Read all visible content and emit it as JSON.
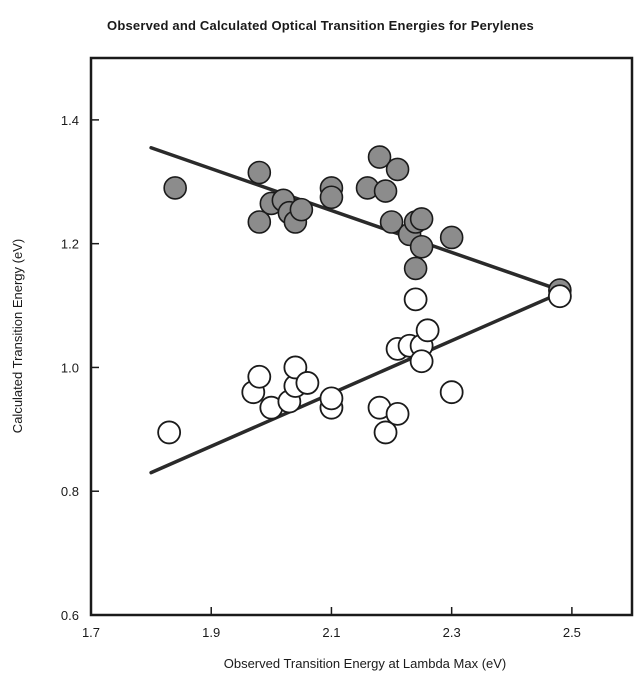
{
  "chart_data": {
    "type": "scatter",
    "title": "Observed and Calculated Optical Transition Energies  for Perylenes",
    "xlabel": "Observed Transition Energy at Lambda Max (eV)",
    "ylabel": "Calculated Transition Energy  (eV)",
    "xlim": [
      1.7,
      2.6
    ],
    "ylim": [
      0.6,
      1.5
    ],
    "xticks": [
      1.7,
      1.9,
      2.1,
      2.3,
      2.5
    ],
    "xtick_labels": [
      "1.7",
      "1.9",
      "2.1",
      "2.3",
      "2.5"
    ],
    "yticks": [
      0.6,
      0.8,
      1.0,
      1.2,
      1.4
    ],
    "ytick_labels": [
      "0.6",
      "0.8",
      "1.0",
      "1.2",
      "1.4"
    ],
    "grid": false,
    "series": [
      {
        "marker": "filled-circle",
        "color": "#8c8c8c",
        "points": [
          [
            1.84,
            1.29
          ],
          [
            1.98,
            1.315
          ],
          [
            1.98,
            1.235
          ],
          [
            2.0,
            1.265
          ],
          [
            2.02,
            1.27
          ],
          [
            2.03,
            1.25
          ],
          [
            2.04,
            1.235
          ],
          [
            2.05,
            1.255
          ],
          [
            2.1,
            1.29
          ],
          [
            2.1,
            1.275
          ],
          [
            2.16,
            1.29
          ],
          [
            2.18,
            1.34
          ],
          [
            2.19,
            1.285
          ],
          [
            2.2,
            1.235
          ],
          [
            2.21,
            1.32
          ],
          [
            2.23,
            1.215
          ],
          [
            2.24,
            1.235
          ],
          [
            2.25,
            1.24
          ],
          [
            2.25,
            1.195
          ],
          [
            2.24,
            1.16
          ],
          [
            2.3,
            1.21
          ],
          [
            2.48,
            1.125
          ]
        ]
      },
      {
        "marker": "open-circle",
        "color": "#ffffff",
        "points": [
          [
            1.83,
            0.895
          ],
          [
            1.97,
            0.96
          ],
          [
            1.98,
            0.985
          ],
          [
            2.0,
            0.935
          ],
          [
            2.03,
            0.945
          ],
          [
            2.04,
            0.97
          ],
          [
            2.04,
            1.0
          ],
          [
            2.06,
            0.975
          ],
          [
            2.1,
            0.935
          ],
          [
            2.1,
            0.95
          ],
          [
            2.18,
            0.935
          ],
          [
            2.19,
            0.895
          ],
          [
            2.21,
            0.925
          ],
          [
            2.21,
            1.03
          ],
          [
            2.23,
            1.035
          ],
          [
            2.24,
            1.11
          ],
          [
            2.25,
            1.035
          ],
          [
            2.25,
            1.01
          ],
          [
            2.26,
            1.06
          ],
          [
            2.3,
            0.96
          ],
          [
            2.48,
            1.115
          ]
        ]
      }
    ],
    "lines": [
      {
        "x": [
          1.8,
          2.48
        ],
        "y": [
          1.355,
          1.125
        ]
      },
      {
        "x": [
          1.8,
          2.48
        ],
        "y": [
          0.83,
          1.12
        ]
      }
    ]
  }
}
